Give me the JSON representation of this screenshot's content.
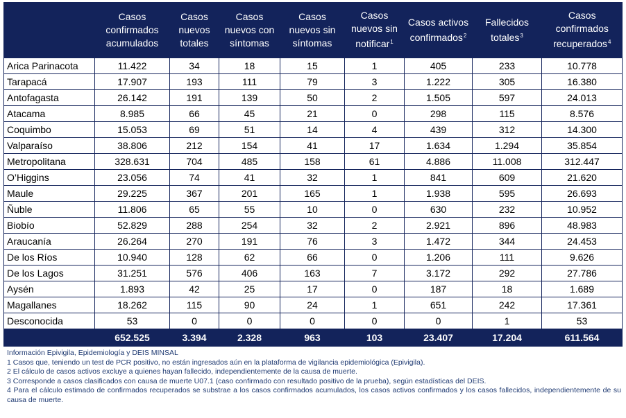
{
  "table": {
    "headers": [
      {
        "text": "Casos confirmados acumulados",
        "sup": ""
      },
      {
        "text": "Casos nuevos totales",
        "sup": ""
      },
      {
        "text": "Casos nuevos con síntomas",
        "sup": ""
      },
      {
        "text": "Casos nuevos sin síntomas",
        "sup": ""
      },
      {
        "text": "Casos nuevos sin notificar",
        "sup": "1"
      },
      {
        "text": "Casos activos confirmados",
        "sup": "2"
      },
      {
        "text": "Fallecidos totales",
        "sup": "3"
      },
      {
        "text": "Casos confirmados recuperados",
        "sup": "4"
      }
    ],
    "rows": [
      [
        "Arica Parinacota",
        "11.422",
        "34",
        "18",
        "15",
        "1",
        "405",
        "233",
        "10.778"
      ],
      [
        "Tarapacá",
        "17.907",
        "193",
        "111",
        "79",
        "3",
        "1.222",
        "305",
        "16.380"
      ],
      [
        "Antofagasta",
        "26.142",
        "191",
        "139",
        "50",
        "2",
        "1.505",
        "597",
        "24.013"
      ],
      [
        "Atacama",
        "8.985",
        "66",
        "45",
        "21",
        "0",
        "298",
        "115",
        "8.576"
      ],
      [
        "Coquimbo",
        "15.053",
        "69",
        "51",
        "14",
        "4",
        "439",
        "312",
        "14.300"
      ],
      [
        "Valparaíso",
        "38.806",
        "212",
        "154",
        "41",
        "17",
        "1.634",
        "1.294",
        "35.854"
      ],
      [
        "Metropolitana",
        "328.631",
        "704",
        "485",
        "158",
        "61",
        "4.886",
        "11.008",
        "312.447"
      ],
      [
        "O’Higgins",
        "23.056",
        "74",
        "41",
        "32",
        "1",
        "841",
        "609",
        "21.620"
      ],
      [
        "Maule",
        "29.225",
        "367",
        "201",
        "165",
        "1",
        "1.938",
        "595",
        "26.693"
      ],
      [
        "Ñuble",
        "11.806",
        "65",
        "55",
        "10",
        "0",
        "630",
        "232",
        "10.952"
      ],
      [
        "Biobío",
        "52.829",
        "288",
        "254",
        "32",
        "2",
        "2.921",
        "896",
        "48.983"
      ],
      [
        "Araucanía",
        "26.264",
        "270",
        "191",
        "76",
        "3",
        "1.472",
        "344",
        "24.453"
      ],
      [
        "De los Ríos",
        "10.940",
        "128",
        "62",
        "66",
        "0",
        "1.206",
        "111",
        "9.626"
      ],
      [
        "De los Lagos",
        "31.251",
        "576",
        "406",
        "163",
        "7",
        "3.172",
        "292",
        "27.786"
      ],
      [
        "Aysén",
        "1.893",
        "42",
        "25",
        "17",
        "0",
        "187",
        "18",
        "1.689"
      ],
      [
        "Magallanes",
        "18.262",
        "115",
        "90",
        "24",
        "1",
        "651",
        "242",
        "17.361"
      ],
      [
        "Desconocida",
        "53",
        "0",
        "0",
        "0",
        "0",
        "0",
        "1",
        "53"
      ]
    ],
    "totals": [
      "",
      "652.525",
      "3.394",
      "2.328",
      "963",
      "103",
      "23.407",
      "17.204",
      "611.564"
    ]
  },
  "notes": [
    "Información Epivigila, Epidemiología y DEIS MINSAL",
    "1 Casos que, teniendo un test de PCR positivo, no están ingresados aún en la plataforma de vigilancia epidemiológica (Epivigila).",
    "2 El cálculo de casos activos excluye a quienes hayan fallecido, independientemente de la causa de muerte.",
    "3 Corresponde a casos clasificados con causa de muerte U07.1 (caso confirmado con resultado positivo de la prueba), según estadísticas del DEIS.",
    "4 Para el cálculo estimado de confirmados recuperados se substrae a los casos confirmados acumulados, los casos activos confirmados y los casos fallecidos, independientemente de su causa de muerte."
  ],
  "colors": {
    "header_bg": "#13235b",
    "notes_text": "#1f3a72"
  }
}
